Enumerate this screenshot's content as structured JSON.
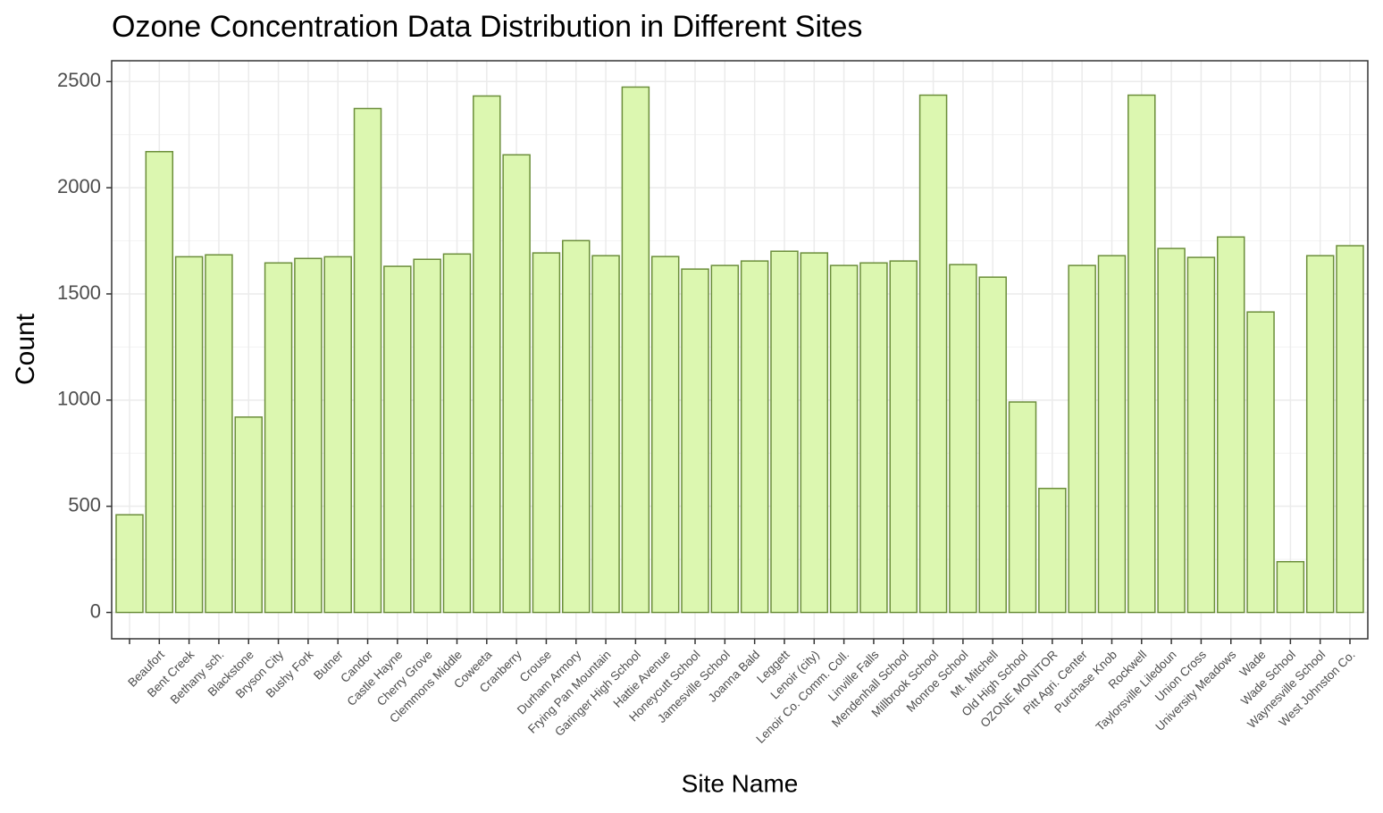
{
  "chart_data": {
    "type": "bar",
    "title": "Ozone Concentration Data Distribution in Different Sites",
    "x_label": "Site Name",
    "y_label": "Count",
    "categories": [
      null,
      "Beaufort",
      "Bent Creek",
      "Bethany sch.",
      "Blackstone",
      "Bryson City",
      "Bushy Fork",
      "Butner",
      "Candor",
      "Castle Hayne",
      "Cherry Grove",
      "Clemmons Middle",
      "Coweeta",
      "Cranberry",
      "Crouse",
      "Durham Armory",
      "Frying Pan Mountain",
      "Garinger High School",
      "Hattie Avenue",
      "Honeycutt School",
      "Jamesville School",
      "Joanna Bald",
      "Leggett",
      "Lenoir (city)",
      "Lenoir Co. Comm. Coll.",
      "Linville Falls",
      "Mendenhall School",
      "Millbrook School",
      "Monroe School",
      "Mt. Mitchell",
      "Old High School",
      "OZONE MONITOR",
      "Pitt Agri. Center",
      "Purchase Knob",
      "Rockwell",
      "Taylorsville Liledoun",
      "Union Cross",
      "University Meadows",
      "Wade",
      "Wade School",
      "Waynesville School",
      "West Johnston Co."
    ],
    "values": [
      460,
      2170,
      1675,
      1684,
      920,
      1646,
      1667,
      1675,
      2373,
      1630,
      1663,
      1688,
      2432,
      2155,
      1693,
      1751,
      1680,
      2474,
      1676,
      1617,
      1634,
      1655,
      1701,
      1693,
      1634,
      1646,
      1655,
      2436,
      1638,
      1579,
      991,
      584,
      1634,
      1680,
      2436,
      1714,
      1672,
      1768,
      1415,
      239,
      1680,
      1727
    ],
    "color": "#dcf7b0",
    "edge_color": "#6b8e3a",
    "ylim": [
      -124,
      2598
    ],
    "yticks": [
      0,
      500,
      1000,
      1500,
      2000,
      2500
    ],
    "grid": true
  }
}
